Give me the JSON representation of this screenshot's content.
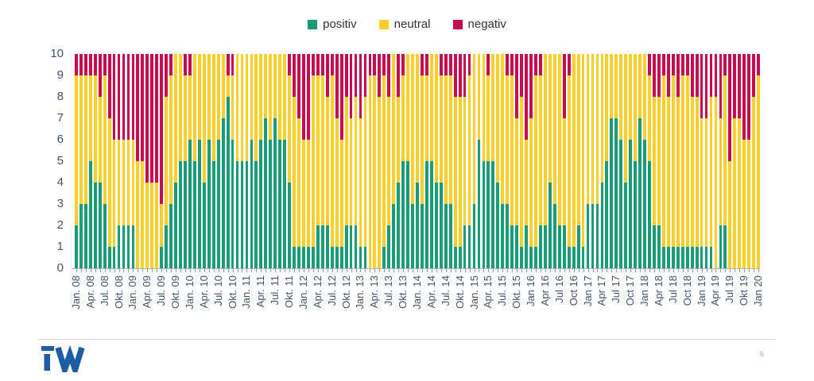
{
  "page": {
    "page_number": "6",
    "logo": "iW-logo",
    "logo_color": "#1e5da6"
  },
  "chart_data": {
    "type": "bar",
    "stacked": true,
    "title": "",
    "xlabel": "",
    "ylabel": "",
    "ylim": [
      0,
      10
    ],
    "grid": false,
    "legend_position": "top-center",
    "legend": [
      {
        "label": "positiv",
        "color": "#189b76"
      },
      {
        "label": "neutral",
        "color": "#f8cf2c"
      },
      {
        "label": "negativ",
        "color": "#c60b4e"
      }
    ],
    "y_ticks": [
      "0",
      "1",
      "2",
      "3",
      "4",
      "5",
      "6",
      "7",
      "8",
      "9",
      "10"
    ],
    "x_tick_every": 3,
    "x_tick_labels": [
      "Jan. 08",
      "Apr. 08",
      "Jul. 08",
      "Okt. 08",
      "Jan. 09",
      "Apr. 09",
      "Jul. 09",
      "Okt. 09",
      "Jan. 10",
      "Apr. 10",
      "Jul. 10",
      "Okt. 10",
      "Jan. 11",
      "Apr. 11",
      "Jul. 11",
      "Okt. 11",
      "Jan. 12",
      "Apr. 12",
      "Jul. 12",
      "Okt. 12",
      "Jan. 13",
      "Apr. 13",
      "Jul. 13",
      "Okt. 13",
      "Jan. 14",
      "Apr. 14",
      "Jul. 14",
      "Okt. 14",
      "Jan. 15",
      "Apr. 15",
      "Jul. 15",
      "Okt. 15",
      "Jan 16",
      "Apr 16",
      "Jul 16",
      "Oct 16",
      "Jan 17",
      "Apr 17",
      "Jul 17",
      "Oct 17",
      "Jan 18",
      "Apr 18",
      "Jul 18",
      "Oct 18",
      "Jan 19",
      "Apr 19",
      "Jul 19",
      "Okt 19",
      "Jan 20"
    ],
    "series": [
      {
        "name": "positiv",
        "color": "#189b76",
        "values": [
          2,
          3,
          3,
          5,
          4,
          4,
          3,
          1,
          1,
          2,
          2,
          2,
          2,
          0,
          0,
          0,
          0,
          0,
          1,
          2,
          3,
          4,
          5,
          5,
          6,
          5,
          6,
          4,
          6,
          5,
          6,
          7,
          8,
          6,
          5,
          5,
          5,
          6,
          5,
          6,
          7,
          6,
          7,
          6,
          6,
          4,
          1,
          1,
          1,
          1,
          1,
          2,
          2,
          2,
          1,
          1,
          1,
          2,
          2,
          2,
          1,
          1,
          0,
          0,
          0,
          1,
          2,
          3,
          4,
          5,
          5,
          3,
          4,
          3,
          5,
          5,
          4,
          4,
          3,
          3,
          1,
          1,
          2,
          2,
          3,
          6,
          5,
          5,
          5,
          4,
          3,
          3,
          2,
          2,
          1,
          2,
          1,
          1,
          2,
          2,
          4,
          3,
          2,
          2,
          1,
          1,
          2,
          1,
          3,
          3,
          3,
          4,
          5,
          7,
          7,
          6,
          4,
          6,
          5,
          7,
          6,
          5,
          2,
          2,
          1,
          1,
          1,
          1,
          1,
          1,
          1,
          1,
          1,
          1,
          1,
          0,
          2,
          2,
          0,
          0,
          0,
          0,
          0,
          0,
          0
        ]
      },
      {
        "name": "neutral",
        "color": "#f8cf2c",
        "values": [
          7,
          6,
          6,
          4,
          5,
          4,
          6,
          6,
          5,
          4,
          4,
          4,
          4,
          5,
          5,
          4,
          4,
          4,
          2,
          6,
          6,
          6,
          5,
          4,
          3,
          5,
          4,
          6,
          4,
          5,
          4,
          3,
          1,
          3,
          5,
          5,
          5,
          4,
          5,
          4,
          3,
          4,
          3,
          4,
          4,
          5,
          7,
          6,
          5,
          5,
          8,
          7,
          7,
          6,
          8,
          6,
          5,
          6,
          5,
          6,
          6,
          7,
          9,
          9,
          8,
          8,
          6,
          7,
          4,
          4,
          5,
          7,
          6,
          6,
          4,
          5,
          6,
          5,
          6,
          6,
          7,
          7,
          6,
          7,
          7,
          4,
          5,
          4,
          5,
          6,
          7,
          6,
          7,
          5,
          7,
          4,
          6,
          8,
          7,
          8,
          6,
          7,
          8,
          5,
          8,
          9,
          8,
          9,
          7,
          7,
          7,
          6,
          5,
          3,
          3,
          4,
          6,
          4,
          5,
          3,
          4,
          4,
          6,
          6,
          8,
          7,
          8,
          7,
          8,
          8,
          7,
          7,
          6,
          6,
          7,
          8,
          5,
          7,
          5,
          7,
          7,
          6,
          6,
          8,
          9
        ]
      },
      {
        "name": "negativ",
        "color": "#c60b4e",
        "values": [
          1,
          1,
          1,
          1,
          1,
          2,
          1,
          3,
          4,
          4,
          4,
          4,
          4,
          5,
          5,
          6,
          6,
          6,
          7,
          2,
          1,
          0,
          0,
          1,
          1,
          0,
          0,
          0,
          0,
          0,
          0,
          0,
          1,
          1,
          0,
          0,
          0,
          0,
          0,
          0,
          0,
          0,
          0,
          0,
          0,
          1,
          2,
          3,
          4,
          4,
          1,
          1,
          1,
          2,
          1,
          3,
          4,
          2,
          3,
          2,
          3,
          2,
          1,
          1,
          2,
          1,
          2,
          0,
          2,
          1,
          0,
          0,
          0,
          1,
          1,
          0,
          0,
          1,
          1,
          1,
          2,
          2,
          2,
          1,
          0,
          0,
          0,
          1,
          0,
          0,
          0,
          1,
          1,
          3,
          2,
          4,
          3,
          1,
          1,
          0,
          0,
          0,
          0,
          3,
          1,
          0,
          0,
          0,
          0,
          0,
          0,
          0,
          0,
          0,
          0,
          0,
          0,
          0,
          0,
          0,
          0,
          1,
          2,
          2,
          1,
          2,
          1,
          2,
          1,
          1,
          2,
          2,
          3,
          3,
          2,
          2,
          3,
          1,
          5,
          3,
          3,
          4,
          4,
          2,
          1
        ]
      }
    ]
  }
}
